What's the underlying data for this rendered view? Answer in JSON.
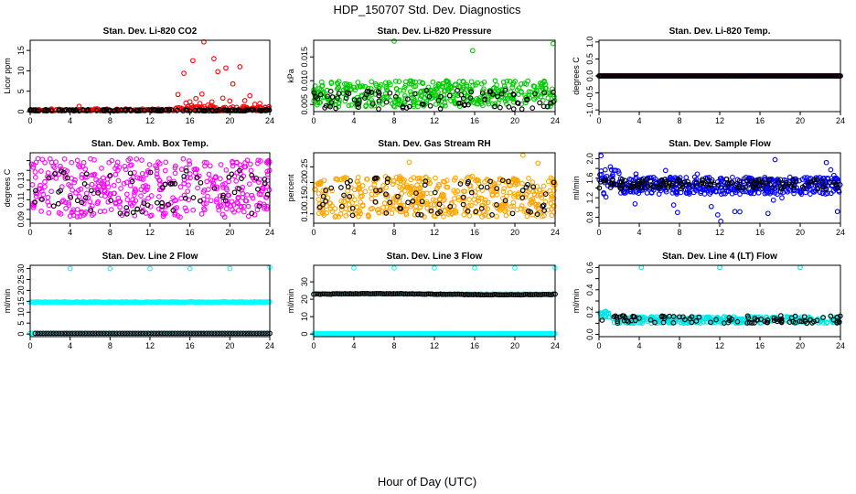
{
  "figure": {
    "title": "HDP_150707  Std. Dev. Diagnostics",
    "xlabel": "Hour of Day (UTC)"
  },
  "chart_data": [
    {
      "type": "scatter",
      "title": "Stan. Dev. Li-820 CO2",
      "ylabel": "Licor ppm",
      "xlim": [
        0,
        24
      ],
      "ylim": [
        0,
        17.5
      ],
      "xticks": [
        0,
        4,
        8,
        12,
        16,
        20,
        24
      ],
      "yticks": [
        0,
        5,
        10,
        15
      ],
      "series": [
        {
          "name": "colored",
          "color": "#ff0000",
          "seed": 11,
          "pattern": "co2_red"
        },
        {
          "name": "black",
          "color": "#000000",
          "seed": 12,
          "pattern": "co2_black"
        }
      ],
      "highlights": [
        {
          "x": 4.9,
          "y": 1.3
        },
        {
          "x": 14.8,
          "y": 4.2
        },
        {
          "x": 15.4,
          "y": 9.4
        },
        {
          "x": 15.6,
          "y": 2.1
        },
        {
          "x": 16.0,
          "y": 2.4
        },
        {
          "x": 16.2,
          "y": 1.5
        },
        {
          "x": 16.3,
          "y": 12.5
        },
        {
          "x": 16.6,
          "y": 3.2
        },
        {
          "x": 17.0,
          "y": 2.0
        },
        {
          "x": 17.2,
          "y": 4.3
        },
        {
          "x": 17.4,
          "y": 17.1
        },
        {
          "x": 17.8,
          "y": 1.6
        },
        {
          "x": 18.2,
          "y": 2.4
        },
        {
          "x": 18.4,
          "y": 13.0
        },
        {
          "x": 18.8,
          "y": 9.8
        },
        {
          "x": 19.3,
          "y": 3.3
        },
        {
          "x": 19.6,
          "y": 10.7
        },
        {
          "x": 20.0,
          "y": 2.6
        },
        {
          "x": 20.3,
          "y": 6.8
        },
        {
          "x": 21.0,
          "y": 11.0
        },
        {
          "x": 21.5,
          "y": 2.7
        },
        {
          "x": 22.0,
          "y": 3.9
        },
        {
          "x": 22.5,
          "y": 1.8
        },
        {
          "x": 23.0,
          "y": 2.0
        }
      ]
    },
    {
      "type": "scatter",
      "title": "Stan. Dev. Li-820 Pressure",
      "ylabel": "kPa",
      "xlim": [
        0,
        24
      ],
      "ylim": [
        0.0035,
        0.0185
      ],
      "xticks": [
        0,
        4,
        8,
        12,
        16,
        20,
        24
      ],
      "yticks": [
        0.005,
        0.01,
        0.015
      ],
      "yticklabels": [
        "0.005",
        "0.010",
        "0.015"
      ],
      "series": [
        {
          "name": "colored",
          "color": "#00cc00",
          "seed": 21,
          "pattern": "pressure_green"
        },
        {
          "name": "black",
          "color": "#000000",
          "seed": 22,
          "pattern": "pressure_black"
        }
      ],
      "highlights": [
        {
          "x": 8.0,
          "y": 0.0183
        },
        {
          "x": 15.8,
          "y": 0.0163
        },
        {
          "x": 23.8,
          "y": 0.0178
        }
      ]
    },
    {
      "type": "scatter",
      "title": "Stan. Dev. Li-820 Temp.",
      "ylabel": "degrees C",
      "xlim": [
        0,
        24
      ],
      "ylim": [
        -1.05,
        1.05
      ],
      "xticks": [
        0,
        4,
        8,
        12,
        16,
        20,
        24
      ],
      "yticks": [
        -1,
        -0.5,
        0,
        0.5,
        1
      ],
      "yticklabels": [
        "-1.0",
        "-0.5",
        "0.0",
        "0.5",
        "1.0"
      ],
      "series": [
        {
          "name": "colored",
          "color": "#ff00ff",
          "seed": 31,
          "pattern": "temp_flat"
        },
        {
          "name": "black",
          "color": "#000000",
          "seed": 32,
          "pattern": "temp_flat"
        }
      ],
      "highlights": []
    },
    {
      "type": "scatter",
      "title": "Stan. Dev. Amb. Box Temp.",
      "ylabel": "degrees C",
      "xlim": [
        0,
        24
      ],
      "ylim": [
        0.086,
        0.158
      ],
      "xticks": [
        0,
        4,
        8,
        12,
        16,
        20,
        24
      ],
      "yticks": [
        0.09,
        0.1,
        0.11,
        0.12,
        0.13,
        0.14,
        0.15
      ],
      "yticklabels": [
        "0.09",
        "",
        "0.11",
        "",
        "0.13",
        "",
        ""
      ],
      "series": [
        {
          "name": "colored",
          "color": "#ff00ff",
          "seed": 41,
          "pattern": "box_magenta"
        },
        {
          "name": "black",
          "color": "#000000",
          "seed": 42,
          "pattern": "box_black"
        }
      ],
      "highlights": []
    },
    {
      "type": "scatter",
      "title": "Stan. Dev. Gas Stream RH",
      "ylabel": "percent",
      "xlim": [
        0,
        24
      ],
      "ylim": [
        0.07,
        0.295
      ],
      "xticks": [
        0,
        4,
        8,
        12,
        16,
        20,
        24
      ],
      "yticks": [
        0.1,
        0.15,
        0.2,
        0.25
      ],
      "yticklabels": [
        "0.10",
        "0.15",
        "0.20",
        "0.25"
      ],
      "series": [
        {
          "name": "colored",
          "color": "#ffa500",
          "seed": 51,
          "pattern": "rh_orange"
        },
        {
          "name": "black",
          "color": "#000000",
          "seed": 52,
          "pattern": "rh_black"
        }
      ],
      "highlights": [
        {
          "x": 9.5,
          "y": 0.265
        },
        {
          "x": 20.8,
          "y": 0.287
        },
        {
          "x": 22.3,
          "y": 0.262
        }
      ]
    },
    {
      "type": "scatter",
      "title": "Stan. Dev. Sample Flow",
      "ylabel": "ml/min",
      "xlim": [
        0,
        24
      ],
      "ylim": [
        0.68,
        2.12
      ],
      "xticks": [
        0,
        4,
        8,
        12,
        16,
        20,
        24
      ],
      "yticks": [
        0.8,
        1.0,
        1.2,
        1.4,
        1.6,
        1.8,
        2.0
      ],
      "yticklabels": [
        "0.8",
        "",
        "1.2",
        "",
        "1.6",
        "",
        "2.0"
      ],
      "series": [
        {
          "name": "colored",
          "color": "#0000ff",
          "seed": 61,
          "pattern": "flow_blue"
        },
        {
          "name": "black",
          "color": "#000000",
          "seed": 62,
          "pattern": "flow_black"
        }
      ],
      "highlights": [
        {
          "x": 0.2,
          "y": 2.06
        },
        {
          "x": 7.8,
          "y": 0.9
        },
        {
          "x": 11.8,
          "y": 0.85
        },
        {
          "x": 12.1,
          "y": 0.72
        },
        {
          "x": 13.5,
          "y": 0.92
        },
        {
          "x": 16.8,
          "y": 0.88
        },
        {
          "x": 17.5,
          "y": 1.98
        },
        {
          "x": 22.6,
          "y": 1.92
        },
        {
          "x": 23.7,
          "y": 0.92
        }
      ]
    },
    {
      "type": "scatter",
      "title": "Stan. Dev. Line 2 Flow",
      "ylabel": "ml/min",
      "xlim": [
        0,
        24
      ],
      "ylim": [
        -1.2,
        31.5
      ],
      "xticks": [
        0,
        4,
        8,
        12,
        16,
        20,
        24
      ],
      "yticks": [
        0,
        5,
        10,
        15,
        20,
        25,
        30
      ],
      "series": [
        {
          "name": "colored",
          "color": "#00ffff",
          "seed": 71,
          "pattern": "line2_cyan"
        },
        {
          "name": "black",
          "color": "#000000",
          "seed": 72,
          "pattern": "line_zero"
        }
      ],
      "highlights": [
        {
          "x": 4.0,
          "y": 30.0
        },
        {
          "x": 8.0,
          "y": 30.0
        },
        {
          "x": 12.0,
          "y": 30.0
        },
        {
          "x": 16.0,
          "y": 30.0
        },
        {
          "x": 20.0,
          "y": 30.0
        },
        {
          "x": 24.0,
          "y": 30.6
        }
      ]
    },
    {
      "type": "scatter",
      "title": "Stan. Dev. Line 3 Flow",
      "ylabel": "ml/min",
      "xlim": [
        0,
        24
      ],
      "ylim": [
        -1.5,
        39.5
      ],
      "xticks": [
        0,
        4,
        8,
        12,
        16,
        20,
        24
      ],
      "yticks": [
        0,
        10,
        20,
        30
      ],
      "series": [
        {
          "name": "colored",
          "color": "#00ffff",
          "seed": 81,
          "pattern": "line3_cyan"
        },
        {
          "name": "black",
          "color": "#000000",
          "seed": 82,
          "pattern": "line3_black"
        }
      ],
      "highlights": [
        {
          "x": 4.0,
          "y": 38.0
        },
        {
          "x": 8.0,
          "y": 38.0
        },
        {
          "x": 12.0,
          "y": 38.0
        },
        {
          "x": 16.0,
          "y": 38.0
        },
        {
          "x": 20.0,
          "y": 38.0
        },
        {
          "x": 24.0,
          "y": 38.0
        }
      ]
    },
    {
      "type": "scatter",
      "title": "Stan. Dev. Line 4 (LT) Flow",
      "ylabel": "ml/min",
      "xlim": [
        0,
        24
      ],
      "ylim": [
        -0.02,
        0.62
      ],
      "xticks": [
        0,
        4,
        8,
        12,
        16,
        20,
        24
      ],
      "yticks": [
        0,
        0.1,
        0.2,
        0.3,
        0.4,
        0.5,
        0.6
      ],
      "yticklabels": [
        "0.0",
        "",
        "0.2",
        "",
        "0.4",
        "",
        "0.6"
      ],
      "series": [
        {
          "name": "colored",
          "color": "#00e5e5",
          "seed": 91,
          "pattern": "line4_cyan"
        },
        {
          "name": "black",
          "color": "#000000",
          "seed": 92,
          "pattern": "line4_black"
        }
      ],
      "highlights": [
        {
          "x": 4.2,
          "y": 0.6
        },
        {
          "x": 12.0,
          "y": 0.6
        },
        {
          "x": 20.0,
          "y": 0.6
        }
      ]
    }
  ]
}
